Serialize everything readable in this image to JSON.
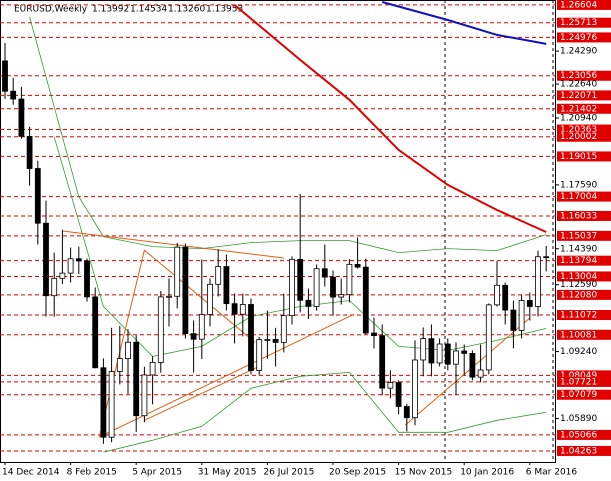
{
  "chart_data": {
    "type": "candlestick",
    "title": "EURUSD,Weekly",
    "title_values": [
      1.13992,
      1.14534,
      {
        "value": 1.1326,
        "label": "1.13260"
      },
      1.13953
    ],
    "categories": [
      "14 Dec 2014",
      null,
      null,
      null,
      null,
      null,
      null,
      null,
      "8 Feb 2015",
      null,
      null,
      null,
      null,
      null,
      null,
      null,
      "5 Apr 2015",
      null,
      null,
      null,
      null,
      null,
      null,
      null,
      "31 May 2015",
      null,
      null,
      null,
      null,
      null,
      null,
      null,
      "26 Jul 2015",
      null,
      null,
      null,
      null,
      null,
      null,
      null,
      "20 Sep 2015",
      null,
      null,
      null,
      null,
      null,
      null,
      null,
      "15 Nov 2015",
      null,
      null,
      null,
      null,
      null,
      null,
      null,
      "10 Jan 2016",
      null,
      null,
      null,
      null,
      null,
      null,
      null,
      "6 Mar 2016",
      null,
      null
    ],
    "series": [
      {
        "open": [
          1.238,
          1.2228,
          1.2189,
          1.2002,
          1.1841,
          1.1567,
          1.1204,
          1.1291,
          1.1317,
          1.1389,
          1.1378,
          1.1198,
          1.0843,
          1.0495,
          1.0824,
          1.0889,
          1.0971,
          1.0603,
          1.0807,
          1.087,
          1.1198,
          1.1201,
          1.1447,
          1.1014,
          1.0986,
          1.111,
          1.1261,
          1.135,
          1.1164,
          1.1111,
          1.116,
          1.0829,
          1.0984,
          1.0985,
          1.097,
          1.1104,
          1.1386,
          1.1181,
          1.115,
          1.1339,
          1.1297,
          1.1197,
          1.1209,
          1.1361,
          1.1347,
          1.1017,
          1.1004,
          1.0741,
          1.0769,
          1.0649,
          1.0593,
          1.0882,
          1.0989,
          1.0867,
          1.0962,
          1.0861,
          1.0927,
          1.0915,
          1.0796,
          1.0832,
          1.1158,
          1.1256,
          1.1132,
          1.103,
          1.118,
          1.115,
          1.13992
        ],
        "high": [
          1.247,
          1.2295,
          1.225,
          1.205,
          1.188,
          1.168,
          1.142,
          1.1534,
          1.1445,
          1.145,
          1.139,
          1.1245,
          1.089,
          1.1043,
          1.1052,
          1.1036,
          1.1005,
          1.0848,
          1.09,
          1.1228,
          1.129,
          1.1468,
          1.1465,
          1.108,
          1.1385,
          1.129,
          1.1437,
          1.141,
          1.1215,
          1.1215,
          1.119,
          1.0998,
          1.1129,
          1.1043,
          1.1214,
          1.14,
          1.1714,
          1.124,
          1.136,
          1.146,
          1.133,
          1.129,
          1.1387,
          1.1495,
          1.139,
          1.1095,
          1.106,
          1.083,
          1.078,
          1.0662,
          1.098,
          1.1045,
          1.106,
          1.099,
          1.099,
          1.097,
          1.096,
          1.093,
          1.096,
          1.1165,
          1.1377,
          1.127,
          1.118,
          1.121,
          1.122,
          1.143,
          1.14534
        ],
        "low": [
          1.219,
          1.216,
          1.199,
          1.1755,
          1.146,
          1.11,
          1.1098,
          1.1262,
          1.127,
          1.1312,
          1.1175,
          1.084,
          1.0462,
          1.047,
          1.076,
          1.0712,
          1.0521,
          1.057,
          1.066,
          1.0818,
          1.105,
          1.114,
          1.099,
          1.0819,
          1.0887,
          1.105,
          1.12,
          1.113,
          1.0965,
          1.1,
          1.081,
          1.0808,
          1.0888,
          1.0849,
          1.092,
          1.106,
          1.112,
          1.1087,
          1.113,
          1.125,
          1.1105,
          1.116,
          1.117,
          1.134,
          1.101,
          1.094,
          1.0705,
          1.069,
          1.061,
          1.0524,
          1.0555,
          1.08,
          1.08,
          1.085,
          1.083,
          1.071,
          1.0805,
          1.078,
          1.077,
          1.081,
          1.115,
          1.106,
          1.094,
          1.099,
          1.108,
          1.11,
          1.1326
        ],
        "close": [
          1.2228,
          1.2189,
          1.2002,
          1.1841,
          1.1567,
          1.1204,
          1.1291,
          1.1317,
          1.1389,
          1.1378,
          1.1198,
          1.0843,
          1.0495,
          1.0824,
          1.0889,
          1.0971,
          1.0603,
          1.0807,
          1.087,
          1.1198,
          1.1201,
          1.1447,
          1.1014,
          1.0986,
          1.111,
          1.1261,
          1.135,
          1.1164,
          1.1111,
          1.116,
          1.0829,
          1.0984,
          1.0985,
          1.097,
          1.1104,
          1.1386,
          1.1181,
          1.115,
          1.1339,
          1.1297,
          1.1197,
          1.1209,
          1.1361,
          1.1347,
          1.1017,
          1.1004,
          1.0741,
          1.0769,
          1.0649,
          1.0593,
          1.0882,
          1.0989,
          1.0867,
          1.0962,
          1.0861,
          1.0927,
          1.0915,
          1.0796,
          1.0832,
          1.1158,
          1.1256,
          1.1132,
          1.103,
          1.118,
          1.115,
          1.1399,
          1.13953
        ],
        "color": "#000000"
      }
    ],
    "overlays": [
      {
        "color": "#e00000",
        "x": [
          28,
          36,
          42,
          48,
          54,
          60,
          66
        ],
        "values": [
          1.266,
          1.2385,
          1.2185,
          1.1934,
          1.1759,
          1.1633,
          1.1523
        ]
      },
      {
        "color": "#1010c0",
        "x": [
          46,
          54,
          60,
          66
        ],
        "values": [
          1.2675,
          1.2585,
          1.251,
          1.2465
        ]
      },
      {
        "color": "#2e9e2e",
        "x": [
          3,
          6,
          9,
          12,
          18,
          24,
          30,
          36,
          42,
          48,
          54,
          60,
          66
        ],
        "values": [
          1.26,
          1.215,
          1.17,
          1.15,
          1.145,
          1.144,
          1.147,
          1.148,
          1.148,
          1.142,
          1.144,
          1.143,
          1.151
        ]
      },
      {
        "color": "#2e9e2e",
        "x": [
          6,
          12,
          18,
          24,
          30,
          36,
          42,
          48,
          54,
          60,
          66
        ],
        "values": [
          1.2,
          1.115,
          1.09,
          1.095,
          1.11,
          1.115,
          1.118,
          1.095,
          1.093,
          1.098,
          1.104
        ]
      },
      {
        "color": "#2e9e2e",
        "x": [
          12,
          18,
          24,
          30,
          36,
          42,
          48,
          54,
          60,
          66
        ],
        "values": [
          1.042,
          1.048,
          1.055,
          1.074,
          1.08,
          1.082,
          1.052,
          1.052,
          1.058,
          1.062
        ]
      },
      {
        "color": "#e06010",
        "x": [
          7,
          34
        ],
        "values": [
          1.1528,
          1.1393
        ]
      },
      {
        "color": "#e06010",
        "x": [
          11.5,
          17,
          30.5
        ],
        "values": [
          1.0496,
          1.1432,
          1.097
        ]
      },
      {
        "color": "#e06010",
        "x": [
          11.5,
          42.6
        ],
        "values": [
          1.0496,
          1.1112
        ]
      },
      {
        "color": "#e06010",
        "x": [
          17,
          31
        ],
        "values": [
          1.058,
          1.085
        ]
      },
      {
        "color": "#e06010",
        "x": [
          48.8,
          64
        ],
        "values": [
          1.0556,
          1.1092
        ]
      }
    ],
    "ylim": [
      1.0371,
      1.2685
    ],
    "yticks": [
      {
        "value": 1.2429,
        "label": "1.24290"
      },
      {
        "value": 1.2264,
        "label": "1.22640"
      },
      {
        "value": 1.2094,
        "label": "1.20940"
      },
      {
        "value": 1.1759,
        "label": "1.17590"
      },
      {
        "value": 1.1439,
        "label": "1.14390"
      },
      {
        "value": 1.1259,
        "label": "1.12590"
      },
      {
        "value": 1.0924,
        "label": "1.09240"
      },
      {
        "value": 1.0589,
        "label": "1.05890"
      }
    ],
    "levels": [
      1.26604,
      1.25713,
      1.24976,
      1.23056,
      1.22071,
      1.21402,
      1.20363,
      1.20002,
      1.19015,
      1.17004,
      1.16033,
      1.15037,
      1.13794,
      1.13004,
      {
        "value": 1.1208,
        "label": "1.12080"
      },
      1.11072,
      1.10081,
      1.08049,
      1.07721,
      1.07079,
      1.05066,
      1.04263
    ],
    "level_color": "#e00000"
  }
}
